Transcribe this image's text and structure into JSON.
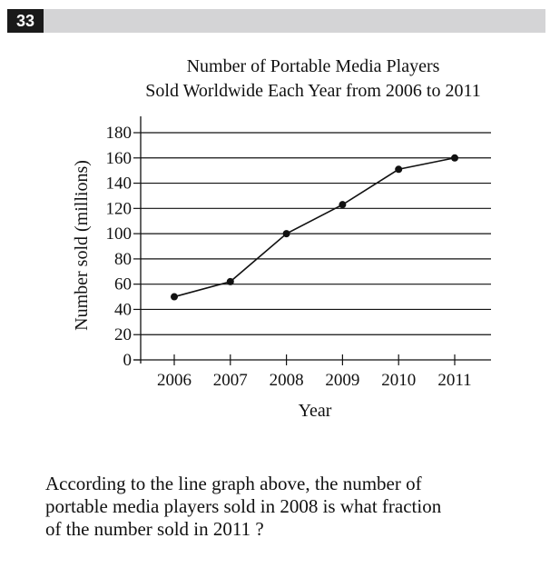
{
  "question": {
    "number": "33",
    "text_lines": [
      "According to the line graph above, the number of",
      "portable media players sold in 2008 is what fraction",
      "of the number sold in 2011 ?"
    ]
  },
  "colors": {
    "header_bar": "#d4d4d6",
    "badge": "#1a1a1a",
    "ink": "#111111"
  },
  "chart_data": {
    "type": "line",
    "title_lines": [
      "Number of Portable Media Players",
      "Sold Worldwide Each Year from 2006 to 2011"
    ],
    "xlabel": "Year",
    "ylabel": "Number sold (millions)",
    "categories": [
      "2006",
      "2007",
      "2008",
      "2009",
      "2010",
      "2011"
    ],
    "series": [
      {
        "values": [
          50,
          62,
          100,
          123,
          151,
          160
        ]
      }
    ],
    "ylim": [
      0,
      180
    ],
    "yticks": [
      0,
      20,
      40,
      60,
      80,
      100,
      120,
      140,
      160,
      180
    ],
    "ytick_labels": [
      "0",
      "20",
      "40",
      "60",
      "80",
      "100",
      "120",
      "140",
      "160",
      "180"
    ],
    "grid": true,
    "legend": "none"
  }
}
